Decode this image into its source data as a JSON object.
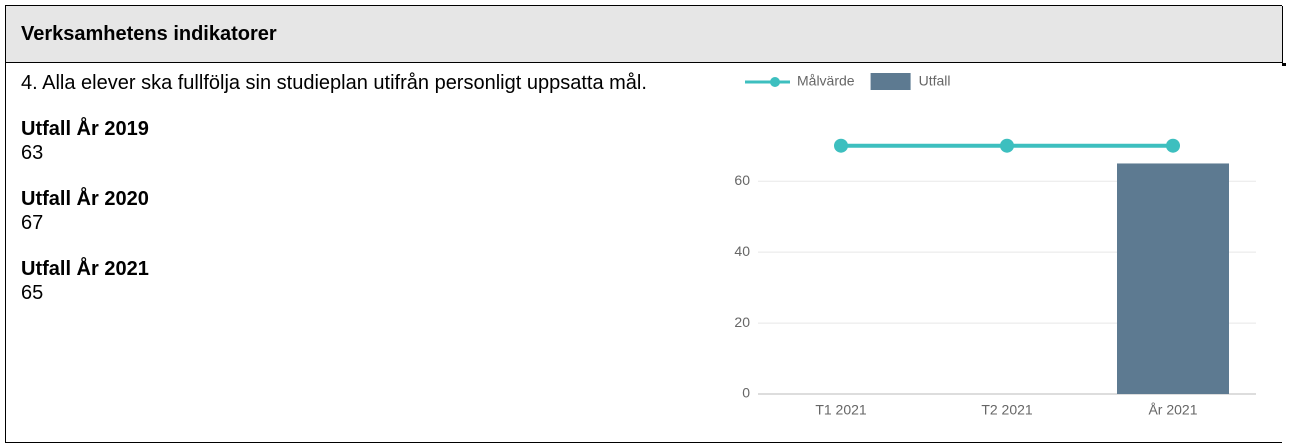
{
  "header": {
    "title": "Verksamhetens indikatorer"
  },
  "indicator": {
    "text": "4. Alla elever ska fullfölja sin studieplan utifrån personligt uppsatta mål.",
    "results": [
      {
        "label": "Utfall År 2019",
        "value": 63
      },
      {
        "label": "Utfall År 2020",
        "value": 67
      },
      {
        "label": "Utfall År 2021",
        "value": 65
      }
    ]
  },
  "chart_data": {
    "type": "combo",
    "categories": [
      "T1 2021",
      "T2 2021",
      "År 2021"
    ],
    "series": [
      {
        "name": "Målvärde",
        "type": "line",
        "color": "#3dbfbf",
        "values": [
          70,
          70,
          70
        ]
      },
      {
        "name": "Utfall",
        "type": "bar",
        "color": "#5d7a91",
        "values": [
          null,
          null,
          65
        ]
      }
    ],
    "ylim": [
      0,
      75
    ],
    "yticks": [
      0,
      20,
      40,
      60
    ],
    "grid": true,
    "legend": "top-left"
  }
}
